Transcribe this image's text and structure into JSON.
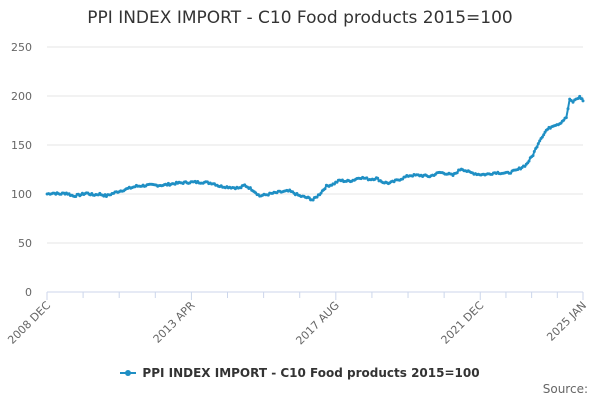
{
  "colors": {
    "series": "#1f8fc4",
    "axis": "#ccd6eb",
    "grid": "#e6e6e6"
  },
  "source_label": "Source:",
  "chart_data": {
    "type": "line",
    "title": "PPI INDEX IMPORT - C10 Food products 2015=100",
    "xlabel": "",
    "ylabel": "",
    "ylim": [
      0,
      250
    ],
    "yticks": [
      0,
      50,
      100,
      150,
      200,
      250
    ],
    "xlim": [
      2008.917,
      2025.0
    ],
    "xticks": [
      {
        "label": "2008 DEC",
        "x": 2008.917
      },
      {
        "label": "2013 APR",
        "x": 2013.25
      },
      {
        "label": "2017 AUG",
        "x": 2017.583
      },
      {
        "label": "2021 DEC",
        "x": 2021.917
      },
      {
        "label": "2025 JAN",
        "x": 2025.0
      }
    ],
    "legend": "bottom-center",
    "series": [
      {
        "name": "PPI INDEX IMPORT - C10 Food products 2015=100",
        "points": [
          [
            2008.92,
            100
          ],
          [
            2009.1,
            101
          ],
          [
            2009.3,
            100
          ],
          [
            2009.5,
            101
          ],
          [
            2009.7,
            98
          ],
          [
            2009.9,
            99
          ],
          [
            2010.1,
            101
          ],
          [
            2010.3,
            99
          ],
          [
            2010.5,
            100
          ],
          [
            2010.7,
            98
          ],
          [
            2011.0,
            102
          ],
          [
            2011.3,
            105
          ],
          [
            2011.6,
            108
          ],
          [
            2012.0,
            109
          ],
          [
            2012.4,
            109
          ],
          [
            2012.8,
            111
          ],
          [
            2013.2,
            112
          ],
          [
            2013.6,
            112
          ],
          [
            2013.9,
            111
          ],
          [
            2014.1,
            108
          ],
          [
            2014.4,
            107
          ],
          [
            2014.7,
            106
          ],
          [
            2014.85,
            109
          ],
          [
            2015.1,
            104
          ],
          [
            2015.3,
            98
          ],
          [
            2015.6,
            100
          ],
          [
            2015.9,
            102
          ],
          [
            2016.2,
            103
          ],
          [
            2016.5,
            98
          ],
          [
            2016.75,
            96
          ],
          [
            2016.9,
            94
          ],
          [
            2017.1,
            100
          ],
          [
            2017.3,
            108
          ],
          [
            2017.5,
            110
          ],
          [
            2017.7,
            114
          ],
          [
            2017.9,
            113
          ],
          [
            2018.1,
            114
          ],
          [
            2018.3,
            117
          ],
          [
            2018.6,
            115
          ],
          [
            2018.8,
            116
          ],
          [
            2019.0,
            112
          ],
          [
            2019.2,
            111
          ],
          [
            2019.5,
            115
          ],
          [
            2019.8,
            119
          ],
          [
            2020.1,
            119
          ],
          [
            2020.4,
            118
          ],
          [
            2020.7,
            122
          ],
          [
            2020.9,
            121
          ],
          [
            2021.1,
            119
          ],
          [
            2021.35,
            126
          ],
          [
            2021.6,
            122
          ],
          [
            2021.9,
            120
          ],
          [
            2022.1,
            120
          ],
          [
            2022.4,
            122
          ],
          [
            2022.7,
            121
          ],
          [
            2023.0,
            124
          ],
          [
            2023.3,
            130
          ],
          [
            2023.5,
            140
          ],
          [
            2023.7,
            155
          ],
          [
            2023.9,
            165
          ],
          [
            2024.1,
            170
          ],
          [
            2024.3,
            172
          ],
          [
            2024.5,
            178
          ],
          [
            2024.6,
            196
          ],
          [
            2024.7,
            194
          ],
          [
            2024.8,
            197
          ],
          [
            2024.9,
            199
          ],
          [
            2024.97,
            197
          ],
          [
            2025.0,
            195
          ]
        ]
      }
    ]
  }
}
